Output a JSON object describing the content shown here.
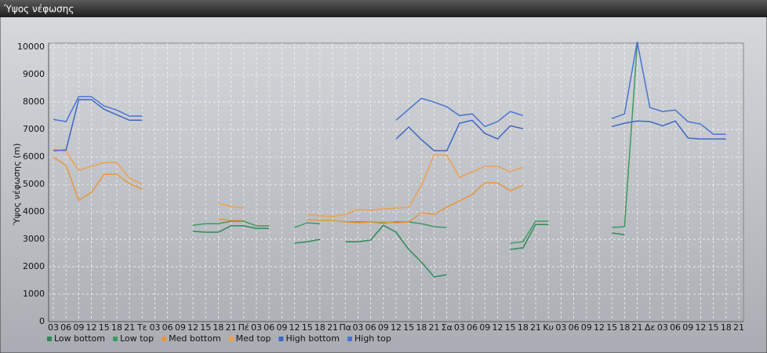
{
  "chart_data": {
    "type": "line",
    "title": "Ύψος νέφωσης",
    "y_label": "Ύψος νέφωσης (m)",
    "categories": [
      "03",
      "06",
      "09",
      "12",
      "15",
      "18",
      "21",
      "Τε",
      "03",
      "06",
      "09",
      "12",
      "15",
      "18",
      "21",
      "Πέ",
      "03",
      "06",
      "09",
      "12",
      "15",
      "18",
      "21",
      "Πα",
      "03",
      "06",
      "09",
      "12",
      "15",
      "18",
      "21",
      "Σα",
      "03",
      "06",
      "09",
      "12",
      "15",
      "18",
      "21",
      "Κυ",
      "03",
      "06",
      "09",
      "12",
      "15",
      "18",
      "21",
      "Δε",
      "03",
      "06",
      "09",
      "12",
      "15",
      "18",
      "21"
    ],
    "series": [
      {
        "name": "Low bottom",
        "color": "#2e8b57",
        "values": [
          null,
          null,
          null,
          null,
          null,
          null,
          null,
          null,
          null,
          null,
          null,
          3290,
          3260,
          3260,
          3490,
          3490,
          3400,
          3400,
          null,
          2860,
          2910,
          3000,
          null,
          2910,
          2910,
          2970,
          3510,
          3260,
          2630,
          2170,
          1630,
          1710,
          null,
          null,
          null,
          null,
          2630,
          2690,
          3540,
          3540,
          null,
          null,
          null,
          null,
          3230,
          3170,
          null,
          null,
          null,
          null,
          null,
          null,
          null,
          null,
          null
        ]
      },
      {
        "name": "Low top",
        "color": "#3c9a63",
        "values": [
          null,
          null,
          null,
          null,
          null,
          null,
          null,
          null,
          null,
          null,
          null,
          3510,
          3570,
          3570,
          3660,
          3660,
          3490,
          3490,
          null,
          3430,
          3600,
          3570,
          null,
          3630,
          3630,
          3630,
          3600,
          3630,
          3630,
          3570,
          3460,
          3430,
          null,
          null,
          null,
          null,
          2860,
          2910,
          3660,
          3660,
          null,
          null,
          null,
          null,
          3430,
          3460,
          10100,
          null,
          null,
          null,
          null,
          null,
          null,
          null,
          null
        ]
      },
      {
        "name": "Med bottom",
        "color": "#e8963c",
        "values": [
          6000,
          5690,
          4430,
          4710,
          5370,
          5370,
          5030,
          4830,
          null,
          null,
          null,
          null,
          null,
          3740,
          3690,
          3690,
          null,
          null,
          null,
          null,
          3710,
          3690,
          3690,
          3630,
          3600,
          3630,
          3630,
          3600,
          3630,
          3970,
          3910,
          4170,
          4400,
          4630,
          5060,
          5060,
          4770,
          4970,
          null,
          null,
          null,
          null,
          null,
          null,
          null,
          null,
          null,
          null,
          null,
          null,
          null,
          null,
          null,
          null,
          null
        ]
      },
      {
        "name": "Med top",
        "color": "#f0a050",
        "values": [
          6290,
          6200,
          5510,
          5660,
          5800,
          5800,
          5230,
          5000,
          null,
          null,
          null,
          null,
          null,
          4310,
          4200,
          4140,
          null,
          null,
          null,
          null,
          3910,
          3860,
          3830,
          3910,
          4090,
          4060,
          4110,
          4140,
          4170,
          4970,
          6090,
          6060,
          5260,
          5460,
          5660,
          5660,
          5460,
          5630,
          null,
          null,
          null,
          null,
          null,
          null,
          null,
          null,
          null,
          null,
          null,
          null,
          null,
          null,
          null,
          null,
          null
        ]
      },
      {
        "name": "High bottom",
        "color": "#3f66c4",
        "values": [
          6230,
          6260,
          8090,
          8090,
          7740,
          7540,
          7340,
          7340,
          null,
          null,
          null,
          null,
          null,
          null,
          null,
          null,
          null,
          null,
          null,
          null,
          null,
          null,
          null,
          null,
          null,
          null,
          null,
          6660,
          7090,
          6630,
          6230,
          6230,
          7230,
          7340,
          6860,
          6660,
          7140,
          7030,
          null,
          null,
          null,
          null,
          null,
          null,
          7110,
          7230,
          7310,
          7290,
          7140,
          7310,
          6690,
          6660,
          6660,
          6660,
          null
        ]
      },
      {
        "name": "High top",
        "color": "#4a74d4",
        "values": [
          7370,
          7290,
          8200,
          8200,
          7860,
          7710,
          7490,
          7490,
          null,
          null,
          null,
          null,
          null,
          null,
          null,
          null,
          null,
          null,
          null,
          null,
          null,
          null,
          null,
          null,
          null,
          null,
          null,
          7340,
          7740,
          8140,
          8000,
          7830,
          7510,
          7570,
          7110,
          7290,
          7660,
          7510,
          null,
          null,
          null,
          null,
          null,
          null,
          7400,
          7570,
          10200,
          7800,
          7660,
          7710,
          7290,
          7200,
          6830,
          6830,
          null
        ]
      }
    ],
    "ylim": [
      0,
      10150
    ],
    "yticks": [
      0,
      1000,
      2000,
      3000,
      4000,
      5000,
      6000,
      7000,
      8000,
      9000,
      10000
    ],
    "grid": true,
    "legend": "bottom"
  }
}
